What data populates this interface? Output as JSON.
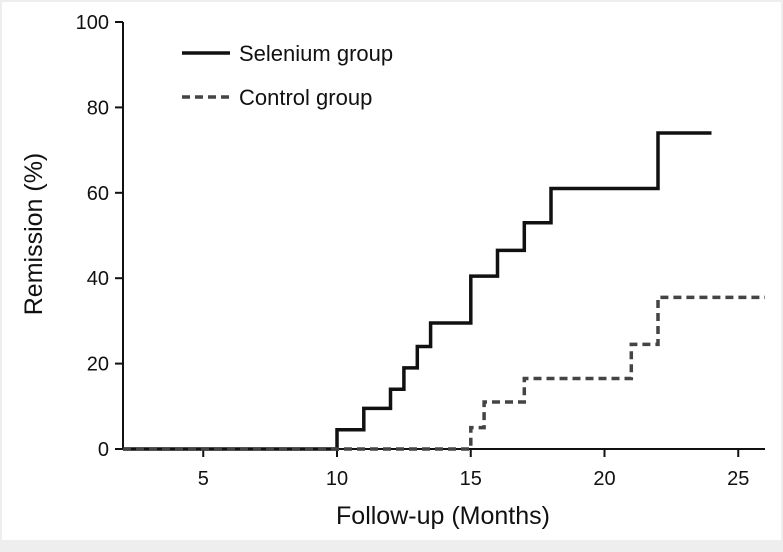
{
  "chart_data": {
    "type": "line",
    "subtype": "step",
    "title": "",
    "xlabel": "Follow-up (Months)",
    "ylabel": "Remission (%)",
    "xlim": [
      2,
      26
    ],
    "ylim": [
      0,
      100
    ],
    "xticks": [
      5,
      10,
      15,
      20,
      25
    ],
    "yticks": [
      0,
      20,
      40,
      60,
      80,
      100
    ],
    "grid": false,
    "legend_position": "top-left",
    "series": [
      {
        "name": "Selenium group",
        "line_style": "solid",
        "color": "#111111",
        "x": [
          2,
          10,
          11,
          12,
          12.5,
          13,
          13.5,
          15,
          16,
          17,
          18,
          22,
          24
        ],
        "y": [
          0,
          4.5,
          9.5,
          14,
          19,
          24,
          29.5,
          40.5,
          46.5,
          53,
          61,
          74,
          74
        ]
      },
      {
        "name": "Control group",
        "line_style": "dashed",
        "color": "#444444",
        "x": [
          2,
          15,
          15.5,
          17,
          21,
          22,
          26
        ],
        "y": [
          0,
          5,
          11,
          16.5,
          24.5,
          35.5,
          35.5
        ]
      }
    ]
  }
}
